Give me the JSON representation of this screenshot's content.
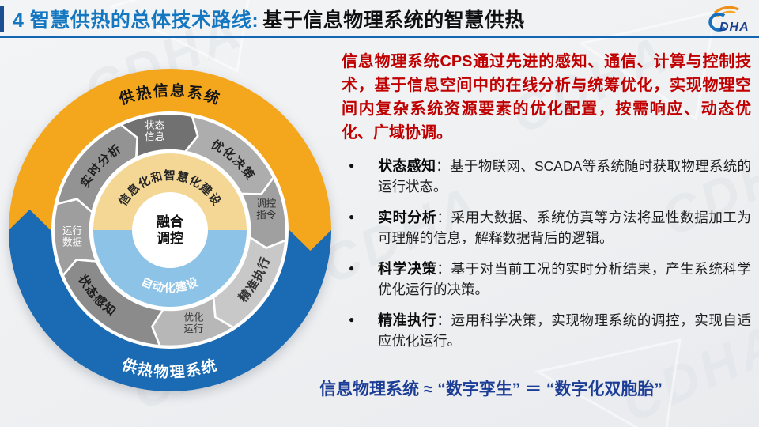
{
  "header": {
    "title_blue": "4 智慧供热的总体技术路线:",
    "title_black": "基于信息物理系统的智慧供热",
    "logo_c": "C",
    "logo_text": "DHA"
  },
  "watermark": "CDHA",
  "bullet_glyph": "●",
  "intro": "信息物理系统CPS通过先进的感知、通信、计算与控制技术，基于信息空间中的在线分析与统筹优化，实现物理空间内复杂系统资源要素的优化配置，按需响应、动态优化、广域协调。",
  "bullets": [
    {
      "term": "状态感知",
      "sep": "：",
      "text": "基于物联网、SCADA等系统随时获取物理系统的运行状态。"
    },
    {
      "term": "实时分析",
      "sep": "：",
      "text": "采用大数据、系统仿真等方法将显性数据加工为可理解的信息，解释数据背后的逻辑。"
    },
    {
      "term": "科学决策",
      "sep": "：",
      "text": "基于对当前工况的实时分析结果，产生系统科学优化运行的决策。"
    },
    {
      "term": "精准执行",
      "sep": "：",
      "text": "运用科学决策，实现物理系统的调控，实现自适应优化运行。"
    }
  ],
  "conclusion": "信息物理系统 ≈ “数字孪生” ＝ “数字化双胞胎”",
  "colors": {
    "title_blue": "#1677c1",
    "rule_blue": "#1566b2",
    "footer_blue": "#0c6cb5",
    "intro_red": "#c00000",
    "conclusion_navy": "#1c3d96"
  },
  "diagram": {
    "outer_top": {
      "label": "供热信息系统",
      "color": "#f4a71d",
      "textColor": "#151515"
    },
    "outer_bottom": {
      "label": "供热物理系统",
      "color": "#1a6ab4",
      "textColor": "#ffffff"
    },
    "inner_top": {
      "label": "信息化和智慧化建设",
      "color": "#f4d794",
      "textColor": "#262626"
    },
    "inner_bottom": {
      "label": "自动化建设",
      "color": "#8cc3e6",
      "textColor": "#ffffff"
    },
    "center": {
      "line1": "融合",
      "line2": "调控"
    },
    "segments": [
      {
        "type": "arrow",
        "lines": [
          "状态",
          "信息"
        ],
        "a1": -25,
        "a2": 11,
        "labelAngle": -9,
        "color": "#717171",
        "textColor": "#ffffff"
      },
      {
        "type": "arc",
        "label": "优化决策",
        "a1": 11,
        "a2": 63,
        "labelFrom": 10,
        "labelTo": 74,
        "color": "#adadad",
        "textColor": "#222222"
      },
      {
        "type": "arrow",
        "lines": [
          "调控",
          "指令"
        ],
        "a1": 63,
        "a2": 95,
        "labelAngle": 79,
        "color": "#a0a0a0",
        "textColor": "#2e2e2e"
      },
      {
        "type": "arc",
        "label": "精准执行",
        "a1": 95,
        "a2": 147,
        "labelFrom": 152,
        "labelTo": 88,
        "color": "#c8c8c8",
        "textColor": "#333333"
      },
      {
        "type": "arrow",
        "lines": [
          "优化",
          "运行"
        ],
        "a1": 147,
        "a2": 185,
        "labelAngle": 166,
        "color": "#b7b7b7",
        "textColor": "#3a3a3a"
      },
      {
        "type": "arc",
        "label": "状态感知",
        "a1": 185,
        "a2": 247,
        "labelFrom": 260,
        "labelTo": 196,
        "color": "#8b8b8b",
        "textColor": "#1d1d1d"
      },
      {
        "type": "arrow",
        "lines": [
          "运行",
          "数据"
        ],
        "a1": 247,
        "a2": 283,
        "labelAngle": 265,
        "color": "#9e9e9e",
        "textColor": "#ffffff"
      },
      {
        "type": "arc",
        "label": "实时分析",
        "a1": 283,
        "a2": 335,
        "labelFrom": 281,
        "labelTo": 345,
        "color": "#939393",
        "textColor": "#1d1d1d"
      }
    ]
  }
}
